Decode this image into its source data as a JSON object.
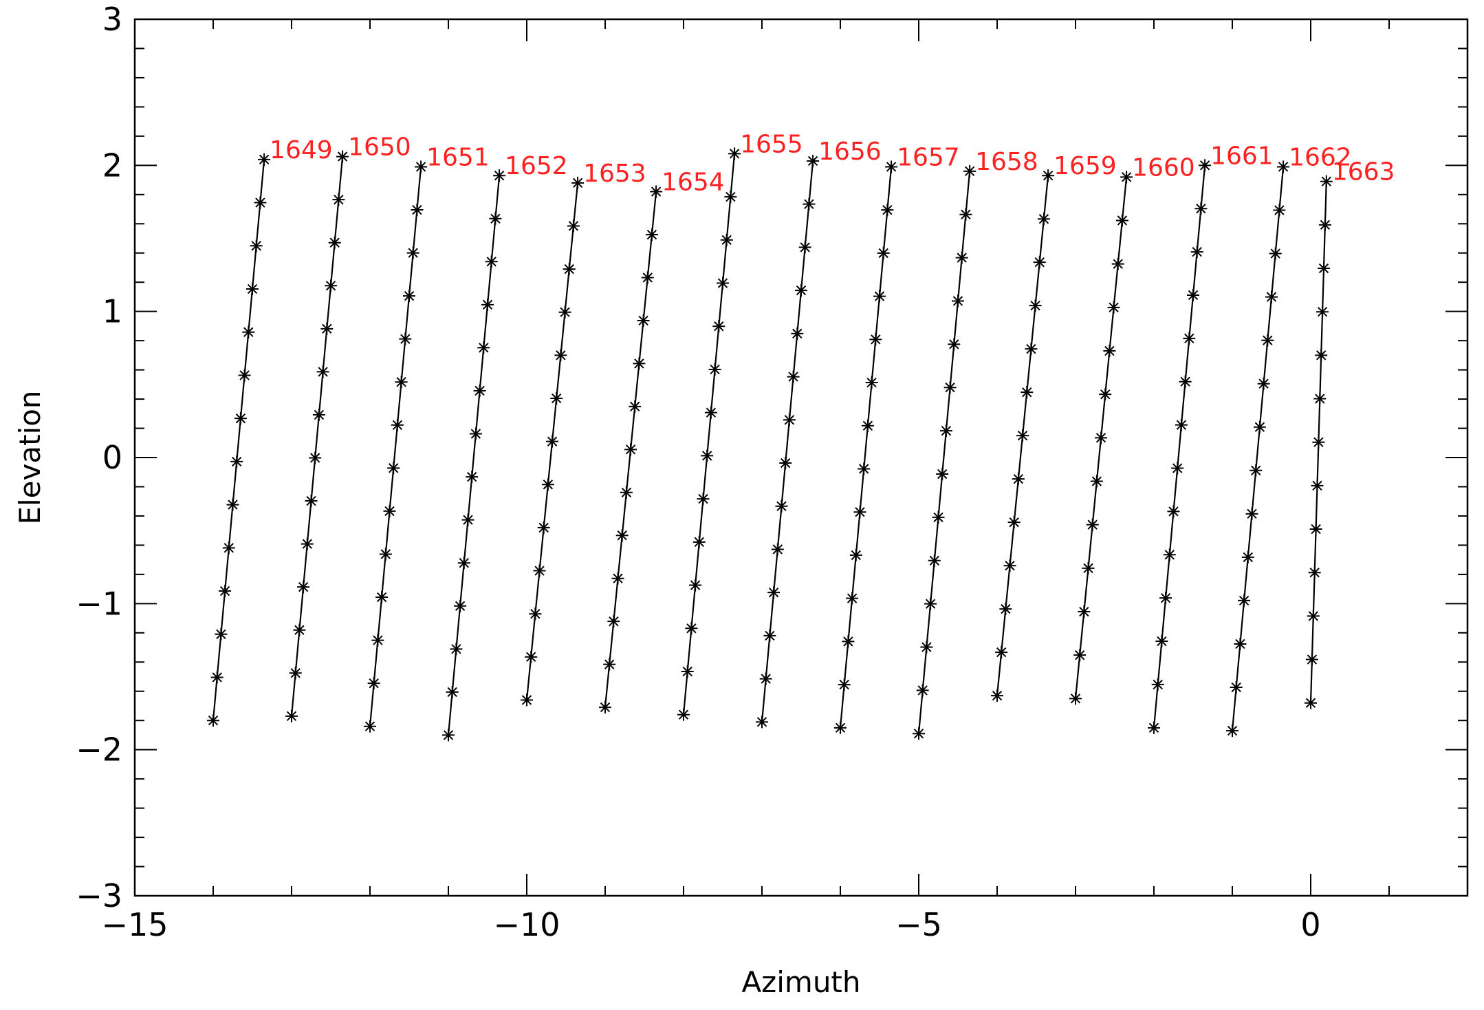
{
  "chart_data": {
    "type": "line",
    "xlabel": "Azimuth",
    "ylabel": "Elevation",
    "xlim": [
      -15,
      2
    ],
    "ylim": [
      -3,
      3
    ],
    "x_ticks": [
      -15,
      -10,
      -5,
      0
    ],
    "x_tick_labels": [
      "−15",
      "−10",
      "−5",
      "0"
    ],
    "y_ticks": [
      -3,
      -2,
      -1,
      0,
      1,
      2,
      3
    ],
    "y_tick_labels": [
      "−3",
      "−2",
      "−1",
      "0",
      "1",
      "2",
      "3"
    ],
    "marker": "asterisk",
    "line_color": "#000000",
    "label_color": "#ff2020",
    "grid": false,
    "series": [
      {
        "name": "1649",
        "start": [
          -14.0,
          -1.8
        ],
        "end": [
          -13.35,
          2.04
        ],
        "points": 14
      },
      {
        "name": "1650",
        "start": [
          -13.0,
          -1.77
        ],
        "end": [
          -12.35,
          2.06
        ],
        "points": 14
      },
      {
        "name": "1651",
        "start": [
          -12.0,
          -1.84
        ],
        "end": [
          -11.35,
          1.99
        ],
        "points": 14
      },
      {
        "name": "1652",
        "start": [
          -11.0,
          -1.9
        ],
        "end": [
          -10.35,
          1.93
        ],
        "points": 14
      },
      {
        "name": "1653",
        "start": [
          -10.0,
          -1.66
        ],
        "end": [
          -9.35,
          1.88
        ],
        "points": 13
      },
      {
        "name": "1654",
        "start": [
          -9.0,
          -1.71
        ],
        "end": [
          -8.35,
          1.82
        ],
        "points": 13
      },
      {
        "name": "1655",
        "start": [
          -8.0,
          -1.76
        ],
        "end": [
          -7.35,
          2.08
        ],
        "points": 14
      },
      {
        "name": "1656",
        "start": [
          -7.0,
          -1.81
        ],
        "end": [
          -6.35,
          2.03
        ],
        "points": 14
      },
      {
        "name": "1657",
        "start": [
          -6.0,
          -1.85
        ],
        "end": [
          -5.35,
          1.99
        ],
        "points": 14
      },
      {
        "name": "1658",
        "start": [
          -5.0,
          -1.89
        ],
        "end": [
          -4.35,
          1.96
        ],
        "points": 14
      },
      {
        "name": "1659",
        "start": [
          -4.0,
          -1.63
        ],
        "end": [
          -3.35,
          1.93
        ],
        "points": 13
      },
      {
        "name": "1660",
        "start": [
          -3.0,
          -1.65
        ],
        "end": [
          -2.35,
          1.92
        ],
        "points": 13
      },
      {
        "name": "1661",
        "start": [
          -2.0,
          -1.85
        ],
        "end": [
          -1.35,
          2.0
        ],
        "points": 14
      },
      {
        "name": "1662",
        "start": [
          -1.0,
          -1.87
        ],
        "end": [
          -0.35,
          1.99
        ],
        "points": 14
      },
      {
        "name": "1663",
        "start": [
          0.0,
          -1.68
        ],
        "end": [
          0.2,
          1.89
        ],
        "points": 13
      }
    ]
  }
}
